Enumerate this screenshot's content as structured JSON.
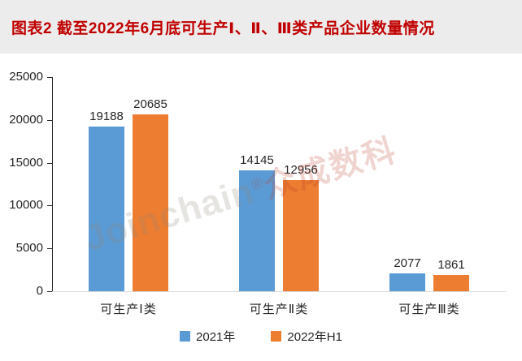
{
  "header": {
    "title": "图表2 截至2022年6月底可生产Ⅰ、Ⅱ、Ⅲ类产品企业数量情况"
  },
  "watermark": {
    "latin": "Joinchain",
    "registered_mark": "®",
    "cjk": "众成数科"
  },
  "chart_data": {
    "type": "bar",
    "title": "截至2022年6月底可生产Ⅰ、Ⅱ、Ⅲ类产品企业数量情况",
    "categories": [
      "可生产Ⅰ类",
      "可生产Ⅱ类",
      "可生产Ⅲ类"
    ],
    "series": [
      {
        "name": "2021年",
        "color": "#5b9bd5",
        "values": [
          19188,
          14145,
          2077
        ]
      },
      {
        "name": "2022年H1",
        "color": "#ed7d31",
        "values": [
          20685,
          12956,
          1861
        ]
      }
    ],
    "xlabel": "",
    "ylabel": "",
    "ylim": [
      0,
      25000
    ],
    "yticks": [
      0,
      5000,
      10000,
      15000,
      20000,
      25000
    ],
    "grid": false,
    "legend_position": "bottom",
    "data_labels": true
  },
  "colors": {
    "title_text": "#c00000",
    "header_background": "#ececec",
    "series_2021": "#5b9bd5",
    "series_2022h1": "#ed7d31",
    "axis_text": "#262626",
    "baseline": "#d9d9d9",
    "background": "#ffffff"
  }
}
